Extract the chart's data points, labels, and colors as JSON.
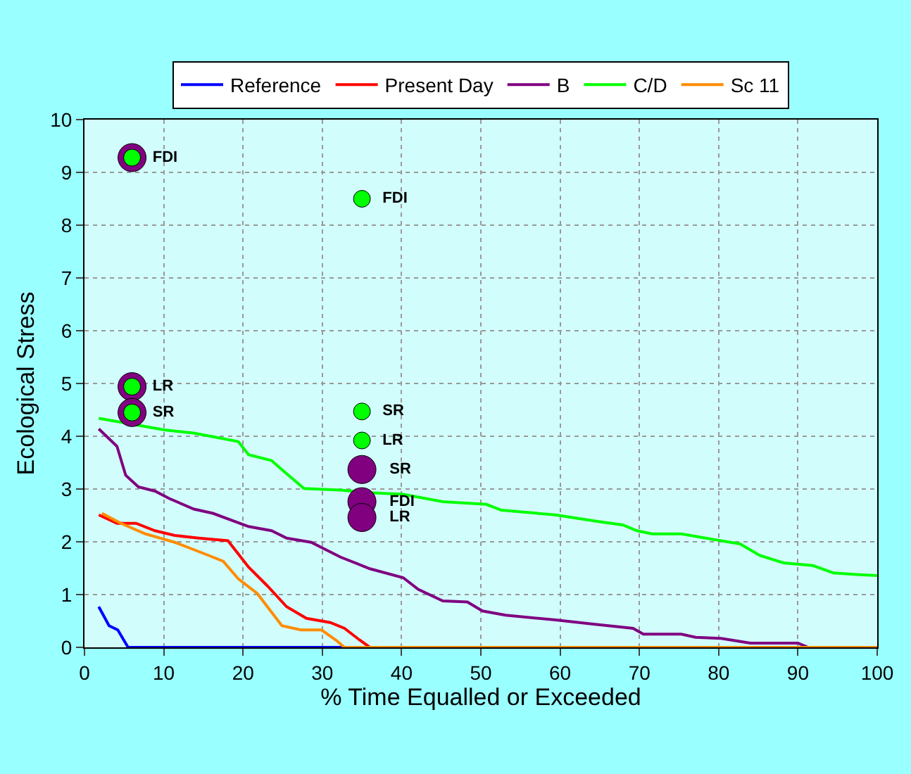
{
  "chart_data": {
    "type": "line",
    "xlabel": "% Time Equalled or Exceeded",
    "ylabel": "Ecological Stress",
    "xlim": [
      0,
      100
    ],
    "ylim": [
      0,
      10
    ],
    "xticks": [
      0,
      10,
      20,
      30,
      40,
      50,
      60,
      70,
      80,
      90,
      100
    ],
    "yticks": [
      0,
      1,
      2,
      3,
      4,
      5,
      6,
      7,
      8,
      9,
      10
    ],
    "grid": true,
    "legend": "top",
    "marker": "none",
    "line_style": "solid",
    "series": [
      {
        "name": "Reference",
        "color": "#0000ff",
        "x": [
          1.8,
          3.1,
          4.2,
          5.5,
          34
        ],
        "values": [
          0.77,
          0.41,
          0.33,
          0,
          0
        ]
      },
      {
        "name": "Present Day",
        "color": "#ff0000",
        "x": [
          1.8,
          4.1,
          6.5,
          8.9,
          11.4,
          14.4,
          18.1,
          20.7,
          23.1,
          25.5,
          28.0,
          31.0,
          32.8,
          34.7,
          36
        ],
        "values": [
          2.51,
          2.35,
          2.35,
          2.21,
          2.12,
          2.07,
          2.02,
          1.52,
          1.16,
          0.77,
          0.55,
          0.47,
          0.36,
          0.14,
          0
        ]
      },
      {
        "name": "B",
        "color": "#800080",
        "x": [
          1.8,
          4.1,
          5.2,
          6.8,
          8.9,
          10.7,
          13.8,
          16.2,
          20.7,
          23.6,
          25.5,
          28.6,
          32.3,
          36,
          40.2,
          42.1,
          45.2,
          48.3,
          50.2,
          53.1,
          59.4,
          64.2,
          69.2,
          70.5,
          75.3,
          77.1,
          80.3,
          84,
          90,
          91.3
        ],
        "values": [
          4.14,
          3.81,
          3.26,
          3.04,
          2.96,
          2.82,
          2.62,
          2.54,
          2.29,
          2.21,
          2.07,
          1.99,
          1.71,
          1.49,
          1.32,
          1.1,
          0.88,
          0.86,
          0.69,
          0.61,
          0.52,
          0.44,
          0.36,
          0.25,
          0.25,
          0.19,
          0.17,
          0.08,
          0.08,
          0
        ]
      },
      {
        "name": "C/D",
        "color": "#00ff00",
        "x": [
          1.8,
          10.1,
          13.8,
          19.4,
          20.7,
          23.6,
          25.5,
          27.7,
          32.3,
          36,
          40.2,
          45.2,
          50.7,
          52.6,
          59.4,
          65,
          67.9,
          69.7,
          71.6,
          75.3,
          80.3,
          82.7,
          85.2,
          88.2,
          91.9,
          94.5,
          97.4,
          100
        ],
        "values": [
          4.34,
          4.12,
          4.06,
          3.9,
          3.65,
          3.54,
          3.29,
          3.01,
          2.98,
          2.93,
          2.9,
          2.76,
          2.71,
          2.6,
          2.51,
          2.38,
          2.32,
          2.21,
          2.15,
          2.15,
          2.02,
          1.96,
          1.74,
          1.6,
          1.55,
          1.41,
          1.38,
          1.36
        ]
      },
      {
        "name": "Sc 11",
        "color": "#ff8c00",
        "x": [
          2.2,
          4.6,
          7.7,
          11.4,
          15.7,
          17.5,
          19.4,
          21.8,
          24.9,
          27.3,
          29.9,
          31.7,
          32.8,
          100
        ],
        "values": [
          2.54,
          2.35,
          2.15,
          1.99,
          1.74,
          1.63,
          1.3,
          1.02,
          0.41,
          0.33,
          0.33,
          0.14,
          0,
          0
        ]
      },
      {
        "type": "scatter",
        "marker": "circle",
        "color": "#800080",
        "x": [
          6,
          6,
          6,
          35,
          35,
          35
        ],
        "values": [
          9.28,
          4.94,
          4.45,
          3.37,
          2.76,
          2.46
        ],
        "value_labels": [
          null,
          null,
          null,
          "SR",
          "FDI",
          "LR"
        ]
      },
      {
        "type": "scatter",
        "marker": "circle",
        "color": "#00ff00",
        "x": [
          6,
          6,
          6,
          35,
          35,
          35
        ],
        "values": [
          9.28,
          4.94,
          4.45,
          8.5,
          4.47,
          3.92
        ],
        "value_labels": [
          "FDI",
          "LR",
          "SR",
          "FDI",
          "SR",
          "LR"
        ]
      }
    ]
  }
}
